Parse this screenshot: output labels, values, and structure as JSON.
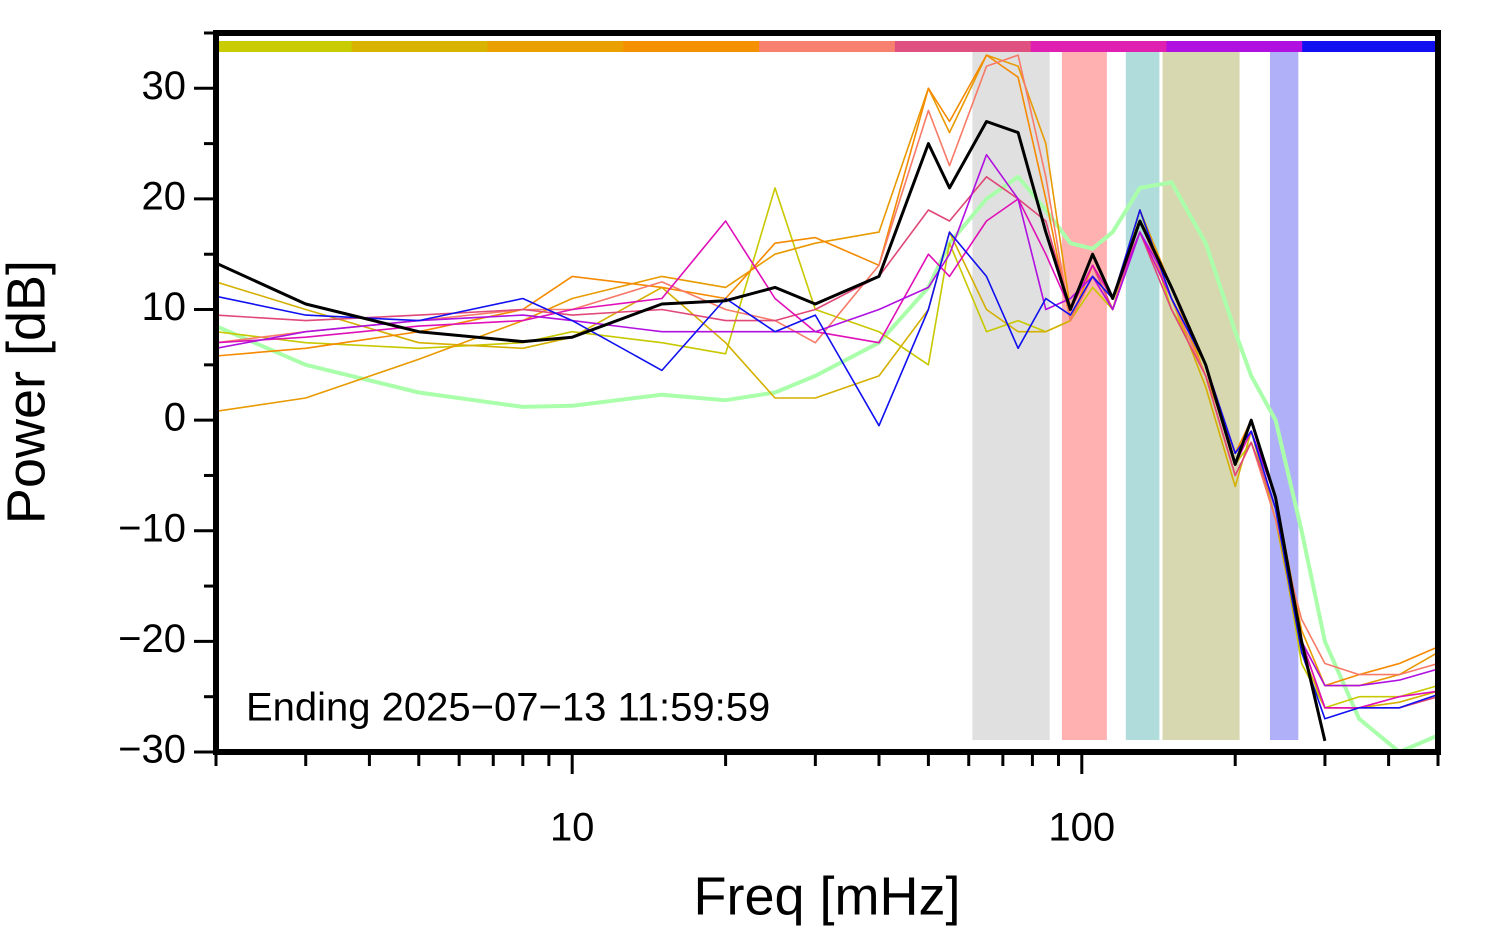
{
  "chart_data": {
    "type": "line",
    "xlabel": "Freq [mHz]",
    "ylabel": "Power [dB]",
    "annotation": "Ending 2025−07−13 11:59:59",
    "xscale": "log",
    "xlim": [
      2,
      500
    ],
    "ylim": [
      -30,
      35
    ],
    "xticks": [
      10,
      100
    ],
    "xminor": [
      2,
      3,
      4,
      5,
      6,
      7,
      8,
      9,
      20,
      30,
      40,
      50,
      60,
      70,
      80,
      90,
      200,
      300,
      400,
      500
    ],
    "yticks": [
      {
        "value": -30,
        "label": "−30"
      },
      {
        "value": -20,
        "label": "−20"
      },
      {
        "value": -10,
        "label": "−10"
      },
      0,
      10,
      20,
      30
    ],
    "yminor": [
      -25,
      -15,
      -5,
      5,
      15,
      25,
      35
    ],
    "colorbar": [
      "#c8cc00",
      "#d8b400",
      "#eaa000",
      "#f59000",
      "#f88070",
      "#e05080",
      "#e020b0",
      "#b010e0",
      "#1010f0"
    ],
    "bands": [
      {
        "xmin": 61,
        "xmax": 86.5,
        "color": "#e0e0e0"
      },
      {
        "xmin": 91.4,
        "xmax": 112,
        "color": "#ffb0b0"
      },
      {
        "xmin": 122,
        "xmax": 142,
        "color": "#b0dcdc"
      },
      {
        "xmin": 144,
        "xmax": 204,
        "color": "#d8d8b0"
      },
      {
        "xmin": 234,
        "xmax": 266,
        "color": "#b0b0f8"
      }
    ],
    "x": [
      2,
      3,
      5,
      8,
      10,
      15,
      20,
      25,
      30,
      40,
      50,
      55,
      65,
      75,
      85,
      95,
      105,
      115,
      130,
      150,
      175,
      200,
      215,
      240,
      270,
      300,
      350,
      420,
      500
    ],
    "series": [
      {
        "color": "#aaffaa",
        "width": 4,
        "values": [
          8.5,
          5,
          2.5,
          1.2,
          1.3,
          2.3,
          1.8,
          2.5,
          4,
          7,
          12,
          16,
          20,
          22,
          19,
          16,
          15.5,
          17,
          21,
          21.5,
          16,
          8,
          4,
          0,
          -10,
          -20,
          -27,
          -30,
          -28.5
        ]
      },
      {
        "color": "#c8c800",
        "width": 1.6,
        "values": [
          8,
          7,
          6.5,
          7,
          8,
          7,
          6,
          21,
          10,
          8,
          5,
          16,
          8,
          9,
          8,
          9,
          12,
          10,
          19,
          10,
          5,
          -4,
          -2,
          -8,
          -22,
          -26,
          -25,
          -25,
          -24
        ]
      },
      {
        "color": "#d4b000",
        "width": 1.6,
        "values": [
          12.5,
          10,
          7,
          6.5,
          7.5,
          12,
          7,
          2,
          2,
          4,
          10,
          17,
          10,
          8,
          8,
          9,
          13,
          11,
          17,
          11,
          3,
          -6,
          -1,
          -9,
          -21,
          -26,
          -26,
          -25.5,
          -24.5
        ]
      },
      {
        "color": "#e89a00",
        "width": 1.6,
        "values": [
          0.8,
          2,
          5.5,
          9,
          11,
          13,
          12,
          15,
          16,
          17,
          30,
          26,
          33,
          32,
          25,
          10,
          14,
          11,
          19,
          12,
          4,
          -3,
          -1,
          -7,
          -19,
          -24,
          -24,
          -23,
          -21
        ]
      },
      {
        "color": "#f58a00",
        "width": 1.6,
        "values": [
          5.8,
          6.5,
          8,
          10,
          13,
          12,
          11,
          16,
          16.5,
          14,
          30,
          27,
          33,
          31,
          20,
          9,
          14,
          10,
          18,
          12,
          5,
          -3,
          0,
          -7,
          -20,
          -24,
          -23,
          -22,
          -20.5
        ]
      },
      {
        "color": "#f87a68",
        "width": 1.6,
        "values": [
          7,
          8,
          9,
          10,
          10,
          12.5,
          10,
          9,
          7,
          14,
          28,
          23,
          32,
          33,
          22,
          9,
          13,
          10,
          18,
          11,
          4,
          -5,
          -2,
          -9,
          -18,
          -22,
          -23,
          -23,
          -22
        ]
      },
      {
        "color": "#e04878",
        "width": 1.6,
        "values": [
          9.5,
          9,
          9.5,
          10,
          9.5,
          10,
          9,
          9,
          10,
          13,
          19,
          18,
          22,
          20,
          18,
          10,
          14,
          10,
          17,
          10,
          4,
          -5,
          -2,
          -8,
          -20,
          -26,
          -26,
          -26,
          -25
        ]
      },
      {
        "color": "#e010b8",
        "width": 1.6,
        "values": [
          7,
          7.5,
          8.5,
          9,
          10,
          11,
          18,
          11,
          8,
          7,
          15,
          13,
          18,
          20,
          15,
          10,
          14,
          11,
          17,
          11,
          5,
          -4,
          -1,
          -7,
          -20,
          -26,
          -26,
          -25,
          -24.5
        ]
      },
      {
        "color": "#b010e0",
        "width": 1.6,
        "values": [
          6.5,
          8,
          9,
          9.5,
          9,
          8,
          8,
          8,
          8,
          10,
          12,
          15,
          24,
          20,
          10,
          11,
          13,
          10,
          17,
          12,
          5,
          -3,
          -1,
          -7,
          -20,
          -24,
          -24,
          -23.5,
          -22.5
        ]
      },
      {
        "color": "#1010f0",
        "width": 1.6,
        "values": [
          11.2,
          9.5,
          9,
          11,
          9,
          4.5,
          11,
          8,
          9.5,
          -0.5,
          10,
          17,
          13,
          6.5,
          11,
          9.5,
          13,
          11,
          19,
          11,
          5,
          -3,
          -1,
          -8,
          -21,
          -27,
          -26,
          -26,
          -24.8
        ]
      },
      {
        "color": "#000000",
        "width": 3,
        "values": [
          14.2,
          10.5,
          8,
          7.1,
          7.5,
          10.5,
          10.8,
          12,
          10.5,
          13,
          25,
          21,
          27,
          26,
          17,
          10,
          15,
          11,
          18,
          12,
          5,
          -4,
          0,
          -7,
          -20,
          -29,
          null,
          null,
          null
        ]
      }
    ]
  }
}
